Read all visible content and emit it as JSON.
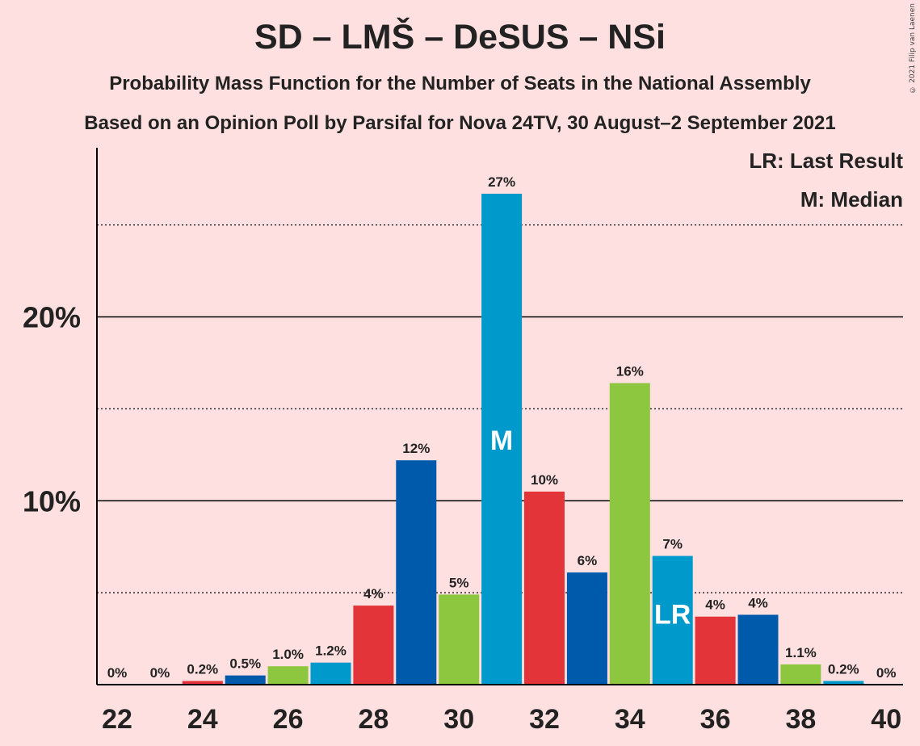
{
  "title": "SD – LMŠ – DeSUS – NSi",
  "subtitle1": "Probability Mass Function for the Number of Seats in the National Assembly",
  "subtitle2": "Based on an Opinion Poll by Parsifal for Nova 24TV, 30 August–2 September 2021",
  "copyright": "© 2021 Filip van Laenen",
  "legend": {
    "last_result": "LR: Last Result",
    "median": "M: Median"
  },
  "colors": {
    "background": "#ffe0e0",
    "red": "#e3343a",
    "lightblue": "#0099cc",
    "darkblue": "#005aab",
    "green": "#8dc63f"
  },
  "chart_data": {
    "type": "bar",
    "x": [
      22,
      23,
      24,
      25,
      26,
      27,
      28,
      29,
      30,
      31,
      32,
      33,
      34,
      35,
      36,
      37,
      38,
      39,
      40
    ],
    "values": [
      0,
      0,
      0.2,
      0.5,
      1.0,
      1.2,
      4.3,
      12.2,
      4.9,
      26.7,
      10.5,
      6.1,
      16.4,
      7.0,
      3.7,
      3.8,
      1.1,
      0.2,
      0
    ],
    "labels": [
      "0%",
      "0%",
      "0.2%",
      "0.5%",
      "1.0%",
      "1.2%",
      "4%",
      "12%",
      "5%",
      "27%",
      "10%",
      "6%",
      "16%",
      "7%",
      "4%",
      "4%",
      "1.1%",
      "0.2%",
      "0%"
    ],
    "bar_colors": [
      "#e3343a",
      "#0099cc",
      "#e3343a",
      "#005aab",
      "#8dc63f",
      "#0099cc",
      "#e3343a",
      "#005aab",
      "#8dc63f",
      "#0099cc",
      "#e3343a",
      "#005aab",
      "#8dc63f",
      "#0099cc",
      "#e3343a",
      "#005aab",
      "#8dc63f",
      "#0099cc",
      "#e3343a"
    ],
    "x_tick_labels": [
      "22",
      "24",
      "26",
      "28",
      "30",
      "32",
      "34",
      "36",
      "38",
      "40"
    ],
    "y_tick_labels": [
      "10%",
      "20%"
    ],
    "ylim": [
      0,
      29.2
    ],
    "gridlines_solid": [
      10,
      20
    ],
    "gridlines_dotted": [
      5,
      15,
      25
    ],
    "median_seat": 31,
    "median_marker": "M",
    "last_result_seat": 35,
    "last_result_marker": "LR",
    "legend_position": "top-right"
  }
}
